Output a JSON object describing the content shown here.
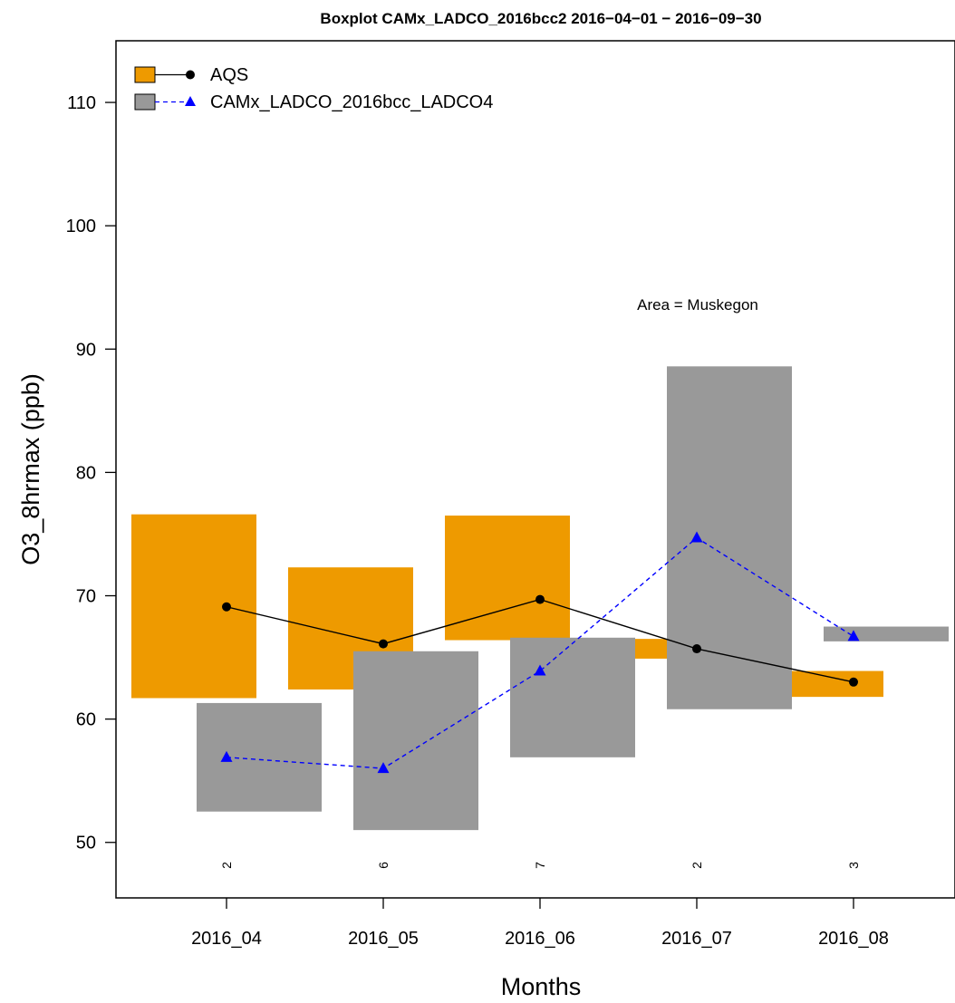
{
  "chart_data": {
    "type": "boxplot",
    "title": "Boxplot CAMx_LADCO_2016bcc2 2016−04−01 − 2016−09−30",
    "xlabel": "Months",
    "ylabel": "O3_8hrmax (ppb)",
    "annotation": "Area = Muskegon",
    "categories": [
      "2016_04",
      "2016_05",
      "2016_06",
      "2016_07",
      "2016_08"
    ],
    "counts": [
      "2",
      "6",
      "7",
      "2",
      "3"
    ],
    "yticks": [
      "50",
      "60",
      "70",
      "80",
      "90",
      "100",
      "110"
    ],
    "ylim": [
      45.5,
      115
    ],
    "grid": false,
    "legend_position": "top-left",
    "series": [
      {
        "name": "AQS",
        "box_color": "#EE9A00",
        "line_color": "#000000",
        "marker": "circle",
        "line_style": "solid",
        "q1": [
          61.7,
          62.4,
          66.4,
          64.9,
          61.8
        ],
        "q3": [
          76.6,
          72.3,
          76.5,
          66.5,
          63.9
        ],
        "median": [
          69.1,
          66.1,
          69.7,
          65.7,
          63.0
        ]
      },
      {
        "name": "CAMx_LADCO_2016bcc_LADCO4",
        "box_color": "#999999",
        "line_color": "#0000FF",
        "marker": "triangle",
        "line_style": "dashed",
        "q1": [
          52.5,
          51.0,
          56.9,
          60.8,
          66.3
        ],
        "q3": [
          61.3,
          65.5,
          66.6,
          88.6,
          67.5
        ],
        "median": [
          56.9,
          56.0,
          63.9,
          74.7,
          66.7
        ]
      }
    ]
  }
}
